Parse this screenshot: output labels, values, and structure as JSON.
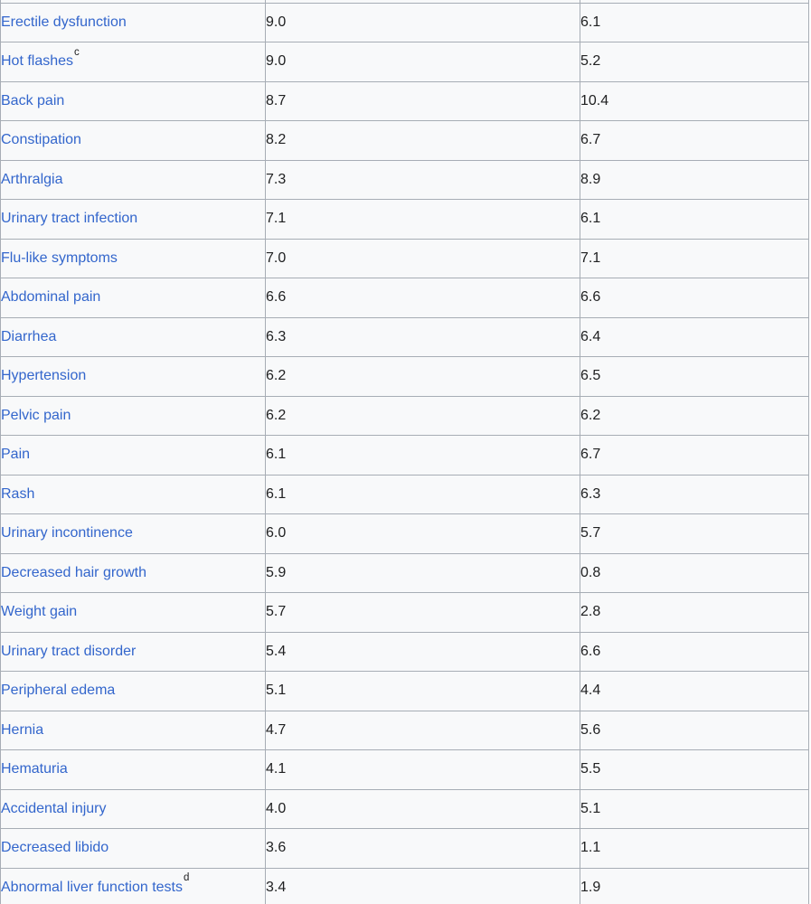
{
  "colors": {
    "link_blue": "#3366cc",
    "text": "#202122",
    "border": "#a7adb5",
    "cell_background": "#f8f9fa",
    "page_background": "#ffffff"
  },
  "table": {
    "rows": [
      {
        "label": "Erectile dysfunction",
        "sup": "",
        "v1": "9.0",
        "v2": "6.1"
      },
      {
        "label": "Hot flashes",
        "sup": "c",
        "v1": "9.0",
        "v2": "5.2"
      },
      {
        "label": "Back pain",
        "sup": "",
        "v1": "8.7",
        "v2": "10.4"
      },
      {
        "label": "Constipation",
        "sup": "",
        "v1": "8.2",
        "v2": "6.7"
      },
      {
        "label": "Arthralgia",
        "sup": "",
        "v1": "7.3",
        "v2": "8.9"
      },
      {
        "label": "Urinary tract infection",
        "sup": "",
        "v1": "7.1",
        "v2": "6.1"
      },
      {
        "label": "Flu-like symptoms",
        "sup": "",
        "v1": "7.0",
        "v2": "7.1"
      },
      {
        "label": "Abdominal pain",
        "sup": "",
        "v1": "6.6",
        "v2": "6.6"
      },
      {
        "label": "Diarrhea",
        "sup": "",
        "v1": "6.3",
        "v2": "6.4"
      },
      {
        "label": "Hypertension",
        "sup": "",
        "v1": "6.2",
        "v2": "6.5"
      },
      {
        "label": "Pelvic pain",
        "sup": "",
        "v1": "6.2",
        "v2": "6.2"
      },
      {
        "label": "Pain",
        "sup": "",
        "v1": "6.1",
        "v2": "6.7"
      },
      {
        "label": "Rash",
        "sup": "",
        "v1": "6.1",
        "v2": "6.3"
      },
      {
        "label": "Urinary incontinence",
        "sup": "",
        "v1": "6.0",
        "v2": "5.7"
      },
      {
        "label": "Decreased hair growth",
        "sup": "",
        "v1": "5.9",
        "v2": "0.8"
      },
      {
        "label": "Weight gain",
        "sup": "",
        "v1": "5.7",
        "v2": "2.8"
      },
      {
        "label": "Urinary tract disorder",
        "sup": "",
        "v1": "5.4",
        "v2": "6.6"
      },
      {
        "label": "Peripheral edema",
        "sup": "",
        "v1": "5.1",
        "v2": "4.4"
      },
      {
        "label": "Hernia",
        "sup": "",
        "v1": "4.7",
        "v2": "5.6"
      },
      {
        "label": "Hematuria",
        "sup": "",
        "v1": "4.1",
        "v2": "5.5"
      },
      {
        "label": "Accidental injury",
        "sup": "",
        "v1": "4.0",
        "v2": "5.1"
      },
      {
        "label": "Decreased libido",
        "sup": "",
        "v1": "3.6",
        "v2": "1.1"
      },
      {
        "label": "Abnormal liver function tests",
        "sup": "d",
        "v1": "3.4",
        "v2": "1.9"
      }
    ]
  }
}
